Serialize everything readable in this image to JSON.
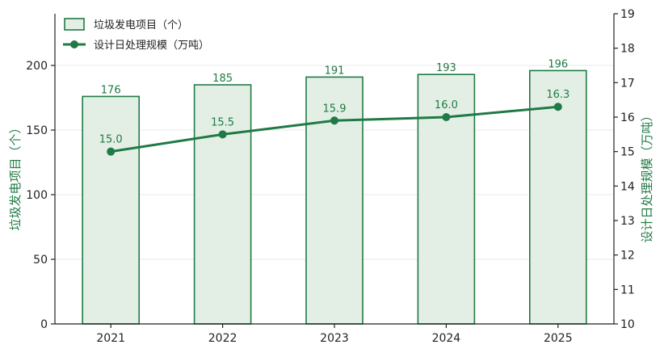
{
  "chart_data": {
    "type": "bar",
    "title": "",
    "categories": [
      "2021",
      "2022",
      "2023",
      "2024",
      "2025"
    ],
    "series": [
      {
        "name": "垃圾发电项目（个）",
        "type": "bar",
        "axis": "left",
        "values": [
          176,
          185,
          191,
          193,
          196
        ]
      },
      {
        "name": "设计日处理规模（万吨）",
        "type": "line",
        "axis": "right",
        "values": [
          15.0,
          15.5,
          15.9,
          16.0,
          16.3
        ]
      }
    ],
    "ylabel_left": "垃圾发电项目（个）",
    "ylabel_right": "设计日处理规模（万吨）",
    "ylim_left": [
      0,
      240
    ],
    "ylim_right": [
      10,
      19
    ],
    "yticks_left": [
      "0",
      "50",
      "100",
      "150",
      "200"
    ],
    "yticks_right": [
      "10",
      "11",
      "12",
      "13",
      "14",
      "15",
      "16",
      "17",
      "18",
      "19"
    ],
    "bar_labels": [
      "176",
      "185",
      "191",
      "193",
      "196"
    ],
    "line_labels": [
      "15.0",
      "15.5",
      "15.9",
      "16.0",
      "16.3"
    ],
    "grid": "horizontal",
    "legend": "top-left",
    "colors": {
      "bar_fill": "#e3efe5",
      "bar_edge": "#1f7a45",
      "line": "#1f7a45",
      "grid": "#e8e8e8",
      "axis": "#222222"
    }
  }
}
